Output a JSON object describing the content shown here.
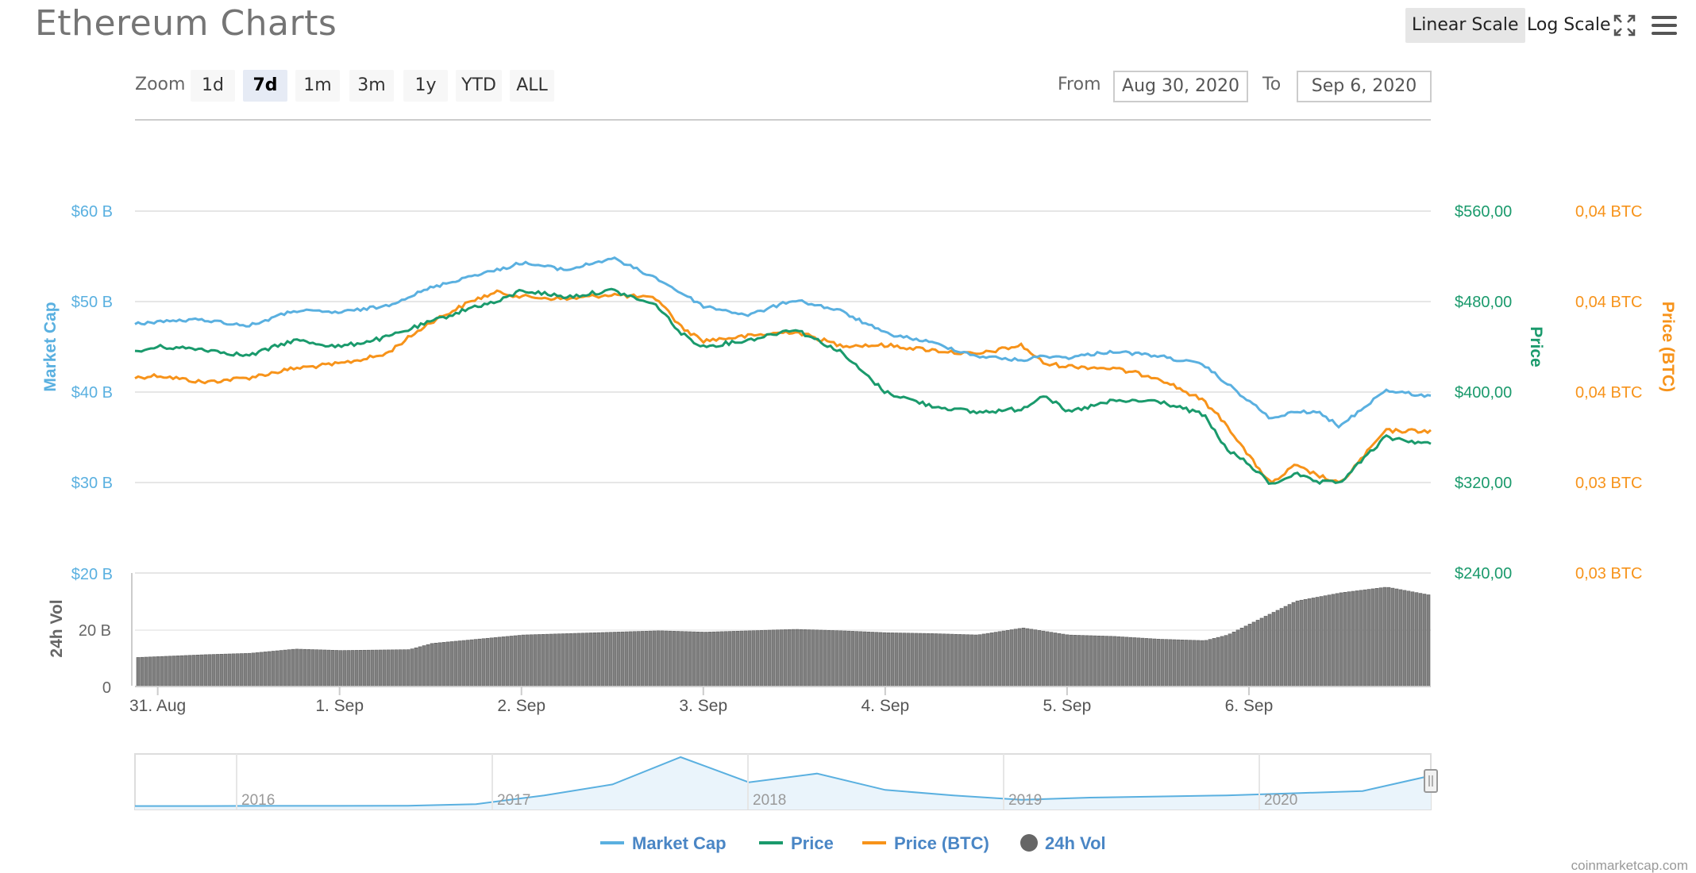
{
  "header": {
    "title": "Ethereum Charts",
    "linear_scale": "Linear Scale",
    "log_scale": "Log Scale",
    "fullscreen_icon": "fullscreen-icon",
    "menu_icon": "hamburger-menu-icon"
  },
  "zoom": {
    "label": "Zoom",
    "buttons": [
      "1d",
      "7d",
      "1m",
      "3m",
      "1y",
      "YTD",
      "ALL"
    ],
    "active": "7d"
  },
  "range": {
    "from_label": "From",
    "from_value": "Aug 30, 2020",
    "to_label": "To",
    "to_value": "Sep 6, 2020"
  },
  "watermark": "coinmarketcap.com",
  "colors": {
    "market_cap": "#5ab0e0",
    "price": "#1a9a6c",
    "price_btc": "#f7931a",
    "volume": "#808080"
  },
  "chart_data": {
    "type": "line",
    "title": "Ethereum Charts",
    "axes": {
      "market_cap": {
        "label": "Market Cap",
        "ticks": [
          "$30 B",
          "$40 B",
          "$50 B",
          "$60 B"
        ],
        "range": [
          30,
          60
        ]
      },
      "price": {
        "label": "Price",
        "ticks": [
          "$240,00",
          "$320,00",
          "$400,00",
          "$480,00",
          "$560,00"
        ],
        "range": [
          240,
          560
        ]
      },
      "price_btc": {
        "label": "Price (BTC)",
        "ticks": [
          "0,03 BTC",
          "0,03 BTC",
          "0,04 BTC",
          "0,04 BTC",
          "0,04 BTC"
        ]
      },
      "volume": {
        "label": "24h Vol",
        "ticks": [
          "0",
          "20 B",
          "$20 B"
        ],
        "range": [
          0,
          40
        ]
      }
    },
    "x_ticks": [
      "31. Aug",
      "1. Sep",
      "2. Sep",
      "3. Sep",
      "4. Sep",
      "5. Sep",
      "6. Sep"
    ],
    "x_start": "2020-08-30 21:00",
    "x_end": "2020-09-06 24:00",
    "series": [
      {
        "name": "Market Cap",
        "axis": "market_cap",
        "x": [
          "2020-08-30 21:00",
          "2020-08-31 00:00",
          "2020-08-31 06:00",
          "2020-08-31 12:00",
          "2020-08-31 18:00",
          "2020-09-01 00:00",
          "2020-09-01 06:00",
          "2020-09-01 12:00",
          "2020-09-01 18:00",
          "2020-09-01 21:00",
          "2020-09-02 00:00",
          "2020-09-02 06:00",
          "2020-09-02 12:00",
          "2020-09-02 18:00",
          "2020-09-02 21:00",
          "2020-09-03 00:00",
          "2020-09-03 06:00",
          "2020-09-03 12:00",
          "2020-09-03 18:00",
          "2020-09-04 00:00",
          "2020-09-04 06:00",
          "2020-09-04 12:00",
          "2020-09-04 18:00",
          "2020-09-04 21:00",
          "2020-09-05 00:00",
          "2020-09-05 06:00",
          "2020-09-05 12:00",
          "2020-09-05 18:00",
          "2020-09-05 21:00",
          "2020-09-06 00:00",
          "2020-09-06 03:00",
          "2020-09-06 06:00",
          "2020-09-06 09:00",
          "2020-09-06 12:00",
          "2020-09-06 18:00",
          "2020-09-06 24:00"
        ],
        "values": [
          47.5,
          47.8,
          48,
          47.3,
          49,
          48.8,
          49.5,
          51.5,
          53,
          53.5,
          54.3,
          53.5,
          54.8,
          52.5,
          51,
          49.5,
          48.5,
          50.2,
          49,
          46.5,
          45.5,
          44,
          43.5,
          44,
          43.8,
          44.5,
          44,
          43,
          41,
          39,
          37,
          37.8,
          37.8,
          36.2,
          40.2,
          39.5
        ]
      },
      {
        "name": "Price",
        "axis": "price",
        "x": [
          "2020-08-30 21:00",
          "2020-08-31 00:00",
          "2020-08-31 06:00",
          "2020-08-31 12:00",
          "2020-08-31 18:00",
          "2020-09-01 00:00",
          "2020-09-01 06:00",
          "2020-09-01 12:00",
          "2020-09-01 18:00",
          "2020-09-01 21:00",
          "2020-09-02 00:00",
          "2020-09-02 06:00",
          "2020-09-02 12:00",
          "2020-09-02 18:00",
          "2020-09-02 21:00",
          "2020-09-03 00:00",
          "2020-09-03 06:00",
          "2020-09-03 12:00",
          "2020-09-03 18:00",
          "2020-09-04 00:00",
          "2020-09-04 06:00",
          "2020-09-04 12:00",
          "2020-09-04 18:00",
          "2020-09-04 21:00",
          "2020-09-05 00:00",
          "2020-09-05 06:00",
          "2020-09-05 12:00",
          "2020-09-05 18:00",
          "2020-09-05 21:00",
          "2020-09-06 00:00",
          "2020-09-06 03:00",
          "2020-09-06 06:00",
          "2020-09-06 09:00",
          "2020-09-06 12:00",
          "2020-09-06 18:00",
          "2020-09-06 24:00"
        ],
        "values": [
          435,
          440,
          438,
          432,
          446,
          440,
          448,
          462,
          476,
          480,
          490,
          484,
          490,
          476,
          452,
          440,
          446,
          456,
          436,
          400,
          388,
          382,
          385,
          398,
          382,
          392,
          392,
          380,
          350,
          336,
          318,
          328,
          320,
          320,
          360,
          354
        ]
      },
      {
        "name": "Price (BTC)",
        "axis": "price_btc",
        "x": [
          "2020-08-30 21:00",
          "2020-08-31 00:00",
          "2020-08-31 06:00",
          "2020-08-31 12:00",
          "2020-08-31 18:00",
          "2020-09-01 00:00",
          "2020-09-01 06:00",
          "2020-09-01 12:00",
          "2020-09-01 18:00",
          "2020-09-01 21:00",
          "2020-09-02 00:00",
          "2020-09-02 06:00",
          "2020-09-02 12:00",
          "2020-09-02 18:00",
          "2020-09-02 21:00",
          "2020-09-03 00:00",
          "2020-09-03 06:00",
          "2020-09-03 12:00",
          "2020-09-03 18:00",
          "2020-09-04 00:00",
          "2020-09-04 06:00",
          "2020-09-04 12:00",
          "2020-09-04 18:00",
          "2020-09-04 21:00",
          "2020-09-05 00:00",
          "2020-09-05 06:00",
          "2020-09-05 12:00",
          "2020-09-05 18:00",
          "2020-09-05 21:00",
          "2020-09-06 00:00",
          "2020-09-06 03:00",
          "2020-09-06 06:00",
          "2020-09-06 09:00",
          "2020-09-06 12:00",
          "2020-09-06 18:00",
          "2020-09-06 24:00"
        ],
        "values": [
          0.0368,
          0.0369,
          0.0366,
          0.0368,
          0.0372,
          0.0374,
          0.0378,
          0.0392,
          0.0402,
          0.0405,
          0.0403,
          0.0402,
          0.0404,
          0.0402,
          0.039,
          0.0384,
          0.0386,
          0.0388,
          0.0382,
          0.0382,
          0.038,
          0.0378,
          0.0382,
          0.0374,
          0.0373,
          0.0372,
          0.0368,
          0.0358,
          0.0348,
          0.0334,
          0.0322,
          0.033,
          0.0326,
          0.0322,
          0.0345,
          0.0345
        ]
      },
      {
        "name": "24h Vol",
        "axis": "volume",
        "x": [
          "2020-08-30 21:00",
          "2020-08-31 06:00",
          "2020-08-31 12:00",
          "2020-08-31 18:00",
          "2020-09-01 00:00",
          "2020-09-01 09:00",
          "2020-09-01 12:00",
          "2020-09-01 18:00",
          "2020-09-02 00:00",
          "2020-09-02 12:00",
          "2020-09-02 18:00",
          "2020-09-03 00:00",
          "2020-09-03 12:00",
          "2020-09-03 18:00",
          "2020-09-04 00:00",
          "2020-09-04 06:00",
          "2020-09-04 12:00",
          "2020-09-04 18:00",
          "2020-09-05 00:00",
          "2020-09-05 06:00",
          "2020-09-05 12:00",
          "2020-09-05 18:00",
          "2020-09-05 21:00",
          "2020-09-06 00:00",
          "2020-09-06 06:00",
          "2020-09-06 12:00",
          "2020-09-06 18:00",
          "2020-09-06 24:00"
        ],
        "values": [
          10,
          11,
          11.5,
          13,
          12.5,
          12.8,
          15,
          16.5,
          18,
          19,
          19.5,
          19,
          20,
          19.5,
          18.8,
          18.5,
          18,
          20.5,
          18,
          17.5,
          16.5,
          16,
          18,
          22,
          30,
          33,
          35,
          32
        ]
      }
    ],
    "navigator": {
      "labels": [
        "2016",
        "2017",
        "2018",
        "2019",
        "2020"
      ],
      "values": [
        0.3,
        0.3,
        0.4,
        0.4,
        0.5,
        2,
        10,
        20,
        45,
        22,
        30,
        15,
        10,
        6,
        8,
        9,
        10,
        12,
        14,
        28
      ]
    },
    "legend": [
      "Market Cap",
      "Price",
      "Price (BTC)",
      "24h Vol"
    ],
    "legend_position": "bottom-center",
    "grid": true
  }
}
